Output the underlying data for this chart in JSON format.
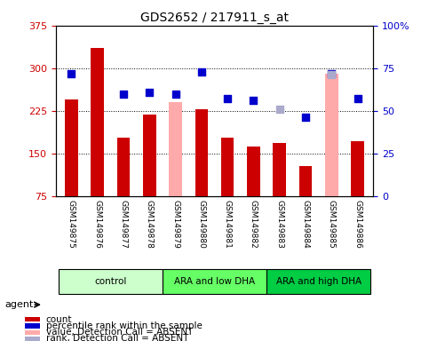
{
  "title": "GDS2652 / 217911_s_at",
  "samples": [
    "GSM149875",
    "GSM149876",
    "GSM149877",
    "GSM149878",
    "GSM149879",
    "GSM149880",
    "GSM149881",
    "GSM149882",
    "GSM149883",
    "GSM149884",
    "GSM149885",
    "GSM149886"
  ],
  "count_values": [
    245,
    335,
    178,
    218,
    null,
    228,
    178,
    162,
    168,
    128,
    null,
    172
  ],
  "count_absent": [
    null,
    null,
    null,
    null,
    240,
    null,
    null,
    null,
    null,
    null,
    290,
    null
  ],
  "percentile_values": [
    72,
    null,
    60,
    61,
    60,
    73,
    57,
    56,
    null,
    46,
    72,
    57
  ],
  "rank_absent": [
    null,
    null,
    null,
    null,
    null,
    null,
    null,
    null,
    51,
    null,
    71,
    null
  ],
  "ylim_left": [
    75,
    375
  ],
  "ylim_right": [
    0,
    100
  ],
  "yticks_left": [
    75,
    150,
    225,
    300,
    375
  ],
  "yticks_right": [
    0,
    25,
    50,
    75,
    100
  ],
  "ytick_right_labels": [
    "0",
    "25",
    "50",
    "75",
    "100%"
  ],
  "grid_lines": [
    150,
    225,
    300
  ],
  "groups": [
    {
      "label": "control",
      "start": 0,
      "end": 4,
      "color": "#ccffcc"
    },
    {
      "label": "ARA and low DHA",
      "start": 4,
      "end": 8,
      "color": "#66ff66"
    },
    {
      "label": "ARA and high DHA",
      "start": 8,
      "end": 12,
      "color": "#00cc44"
    }
  ],
  "bar_color_red": "#cc0000",
  "bar_color_pink": "#ffaaaa",
  "bar_color_blue": "#0000cc",
  "bar_color_lightblue": "#aaaacc",
  "bar_width": 0.5,
  "bg_color": "#d3d3d3",
  "plot_bg": "#ffffff",
  "left_tick_color": "#cc0000",
  "right_tick_color": "#0000cc",
  "percentile_size": 36,
  "agent_label": "agent",
  "legend_items": [
    {
      "color": "#cc0000",
      "label": "count"
    },
    {
      "color": "#0000cc",
      "label": "percentile rank within the sample"
    },
    {
      "color": "#ffaaaa",
      "label": "value, Detection Call = ABSENT"
    },
    {
      "color": "#aaaacc",
      "label": "rank, Detection Call = ABSENT"
    }
  ]
}
